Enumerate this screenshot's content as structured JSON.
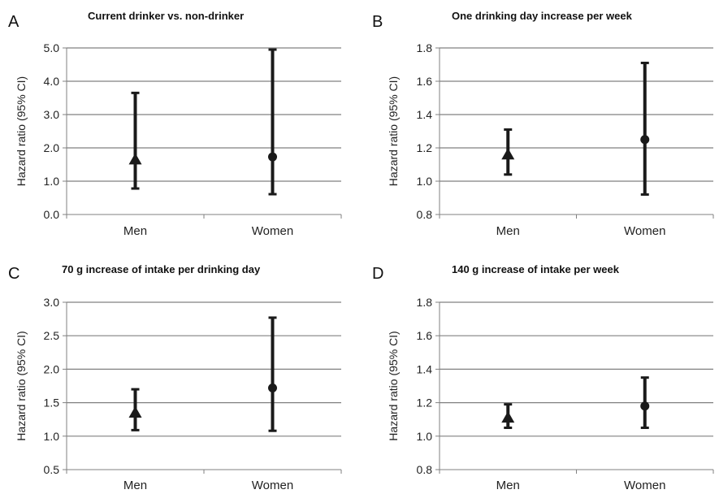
{
  "chart_data": [
    {
      "letter": "A",
      "type": "errorbar",
      "title": "Current drinker vs. non-drinker",
      "ylabel": "Hazard ratio (95% CI)",
      "ylim": [
        0.0,
        5.0
      ],
      "yticks": [
        "0.0",
        "1.0",
        "2.0",
        "3.0",
        "4.0",
        "5.0"
      ],
      "categories": [
        "Men",
        "Women"
      ],
      "markers": [
        "triangle",
        "circle"
      ],
      "values": [
        1.65,
        1.73
      ],
      "lower": [
        0.78,
        0.61
      ],
      "upper": [
        3.65,
        4.95
      ],
      "grid": true
    },
    {
      "letter": "B",
      "type": "errorbar",
      "title": "One drinking day increase per week",
      "ylabel": "Hazard ratio (95% CI)",
      "ylim": [
        0.8,
        1.8
      ],
      "yticks": [
        "0.8",
        "1.0",
        "1.2",
        "1.4",
        "1.6",
        "1.8"
      ],
      "categories": [
        "Men",
        "Women"
      ],
      "markers": [
        "triangle",
        "circle"
      ],
      "values": [
        1.16,
        1.25
      ],
      "lower": [
        1.04,
        0.92
      ],
      "upper": [
        1.31,
        1.71
      ],
      "grid": true
    },
    {
      "letter": "C",
      "type": "errorbar",
      "title": "70 g increase of intake per drinking day",
      "ylabel": "Hazard ratio (95% CI)",
      "ylim": [
        0.5,
        3.0
      ],
      "yticks": [
        "0.5",
        "1.0",
        "1.5",
        "2.0",
        "2.5",
        "3.0"
      ],
      "categories": [
        "Men",
        "Women"
      ],
      "markers": [
        "triangle",
        "circle"
      ],
      "values": [
        1.35,
        1.72
      ],
      "lower": [
        1.09,
        1.08
      ],
      "upper": [
        1.7,
        2.77
      ],
      "grid": true
    },
    {
      "letter": "D",
      "type": "errorbar",
      "title": "140 g increase of intake per week",
      "ylabel": "Hazard ratio (95% CI)",
      "ylim": [
        0.8,
        1.8
      ],
      "yticks": [
        "0.8",
        "1.0",
        "1.2",
        "1.4",
        "1.6",
        "1.8"
      ],
      "categories": [
        "Men",
        "Women"
      ],
      "markers": [
        "triangle",
        "circle"
      ],
      "values": [
        1.11,
        1.18
      ],
      "lower": [
        1.05,
        1.05
      ],
      "upper": [
        1.19,
        1.35
      ],
      "grid": true
    }
  ],
  "colors": {
    "marks": "#1a1a1a",
    "grid": "#808080",
    "axis": "#808080"
  }
}
